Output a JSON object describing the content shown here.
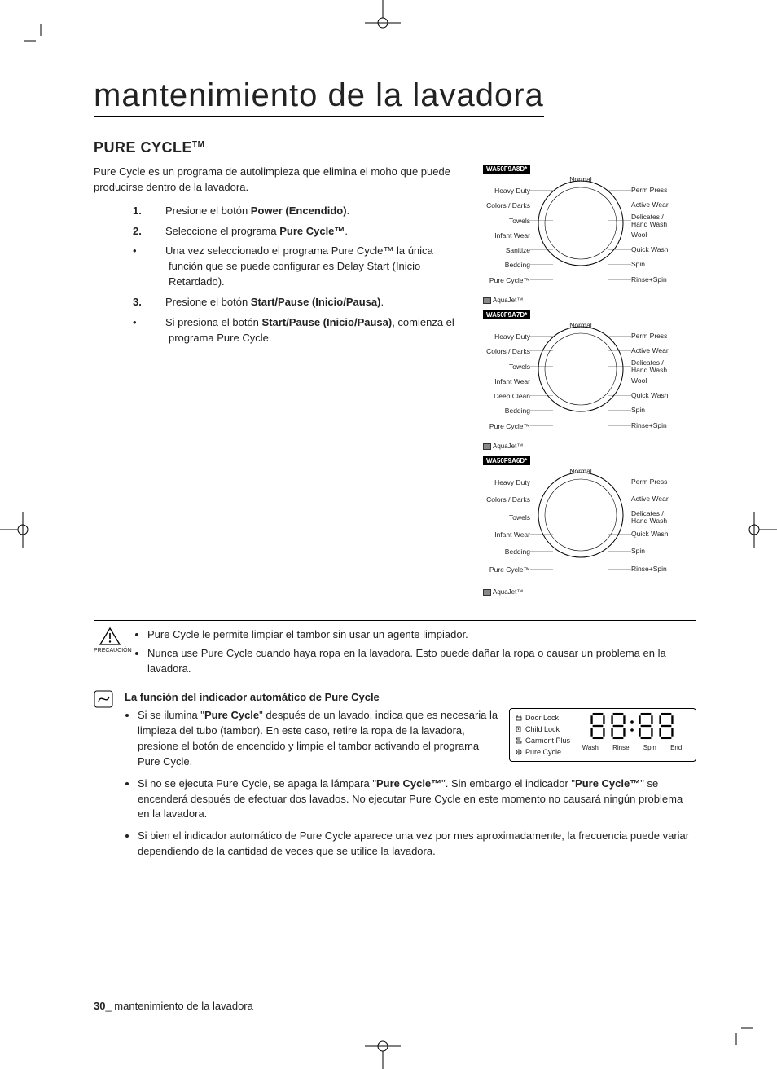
{
  "title": "mantenimiento de la lavadora",
  "section_heading": "PURE CYCLE",
  "intro": "Pure Cycle es un programa de autolimpieza que elimina el moho que puede producirse dentro de la lavadora.",
  "steps": {
    "s1_pre": "Presione el botón ",
    "s1_b": "Power (Encendido)",
    "s1_post": ".",
    "s2_pre": "Seleccione el programa ",
    "s2_b": "Pure Cycle™",
    "s2_post": ".",
    "s2a": "Una vez seleccionado el programa Pure Cycle™ la única función que se puede configurar es Delay Start (Inicio Retardado).",
    "s3_pre": "Presione el botón ",
    "s3_b": "Start/Pause (Inicio/Pausa)",
    "s3_post": ".",
    "s3a_pre": "Si presiona el botón ",
    "s3a_b": "Start/Pause (Inicio/Pausa)",
    "s3a_post": ", comienza el programa Pure Cycle."
  },
  "dials": [
    {
      "model": "WA50F9A8D*",
      "top": "Normal",
      "left": [
        "Heavy Duty",
        "Colors / Darks",
        "Towels",
        "Infant Wear",
        "Sanitize",
        "Bedding",
        "Pure Cycle™"
      ],
      "right": [
        "Perm Press",
        "Active Wear",
        "Delicates / Hand Wash",
        "Wool",
        "Quick Wash",
        "Spin",
        "Rinse+Spin"
      ],
      "aqua": "AquaJet™"
    },
    {
      "model": "WA50F9A7D*",
      "top": "Normal",
      "left": [
        "Heavy Duty",
        "Colors / Darks",
        "Towels",
        "Infant Wear",
        "Deep Clean",
        "Bedding",
        "Pure Cycle™"
      ],
      "right": [
        "Perm Press",
        "Active Wear",
        "Delicates / Hand Wash",
        "Wool",
        "Quick Wash",
        "Spin",
        "Rinse+Spin"
      ],
      "aqua": "AquaJet™"
    },
    {
      "model": "WA50F9A6D*",
      "top": "Normal",
      "left": [
        "Heavy Duty",
        "Colors / Darks",
        "Towels",
        "Infant Wear",
        "Bedding",
        "Pure Cycle™"
      ],
      "right": [
        "Perm Press",
        "Active Wear",
        "Delicates / Hand Wash",
        "Quick Wash",
        "Spin",
        "Rinse+Spin"
      ],
      "aqua": "AquaJet™"
    }
  ],
  "caution_label": "PRECAUCIÓN",
  "caution": [
    "Pure Cycle le permite limpiar el tambor sin usar un agente limpiador.",
    "Nunca use Pure Cycle cuando haya ropa en la lavadora. Esto puede dañar la ropa o causar un problema en la lavadora."
  ],
  "note_title": "La función del indicador automático de Pure Cycle",
  "note_li1_a": "Si se ilumina \"",
  "note_li1_b": "Pure Cycle",
  "note_li1_c": "\" después de un lavado, indica que es necesaria la limpieza del tubo (tambor). En este caso, retire la ropa de la lavadora, presione el botón de encendido y limpie el tambor activando el programa Pure Cycle.",
  "note_li2_a": "Si no se ejecuta Pure Cycle, se apaga la lámpara \"",
  "note_li2_b": "Pure Cycle™",
  "note_li2_c": "\". Sin embargo el indicador \"",
  "note_li2_d": "Pure Cycle™",
  "note_li2_e": "\" se encenderá después de efectuar dos lavados. No ejecutar Pure Cycle en este momento no causará ningún problema en la lavadora.",
  "note_li3": "Si bien el indicador automático de Pure Cycle aparece una vez por mes aproximadamente, la frecuencia puede variar dependiendo de la cantidad de veces que se utilice la lavadora.",
  "display": {
    "items": [
      "Door Lock",
      "Child Lock",
      "Garment Plus",
      "Pure Cycle"
    ],
    "sub": [
      "Wash",
      "Rinse",
      "Spin",
      "End"
    ]
  },
  "footer_page": "30",
  "footer_text": "_ mantenimiento de la lavadora"
}
